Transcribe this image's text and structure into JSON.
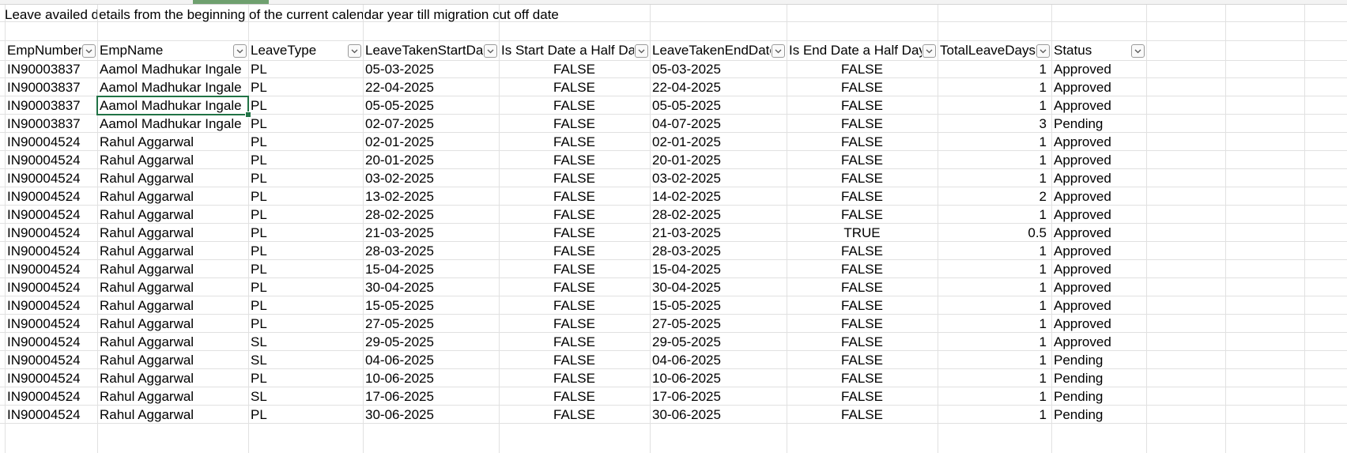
{
  "sheet": {
    "title": "Leave availed details from the beginning of the current calendar year till migration cut off date",
    "filter_icon": "chevron-down-icon",
    "colors": {
      "grid": "#e1e1e1",
      "selection": "#217346"
    },
    "columns": [
      {
        "key": "EmpNumber",
        "label": "EmpNumber"
      },
      {
        "key": "EmpName",
        "label": "EmpName"
      },
      {
        "key": "LeaveType",
        "label": "LeaveType"
      },
      {
        "key": "LeaveTakenStartDate",
        "label": "LeaveTakenStartDat"
      },
      {
        "key": "IsStartHalf",
        "label": "Is Start Date a Half Day"
      },
      {
        "key": "LeaveTakenEndDate",
        "label": "LeaveTakenEndDate"
      },
      {
        "key": "IsEndHalf",
        "label": "Is End Date a Half Day"
      },
      {
        "key": "TotalLeaveDays",
        "label": "TotalLeaveDays"
      },
      {
        "key": "Status",
        "label": "Status"
      }
    ],
    "rows": [
      [
        "IN90003837",
        "Aamol Madhukar Ingale",
        "PL",
        "05-03-2025",
        "FALSE",
        "05-03-2025",
        "FALSE",
        "1",
        "Approved"
      ],
      [
        "IN90003837",
        "Aamol Madhukar Ingale",
        "PL",
        "22-04-2025",
        "FALSE",
        "22-04-2025",
        "FALSE",
        "1",
        "Approved"
      ],
      [
        "IN90003837",
        "Aamol Madhukar Ingale",
        "PL",
        "05-05-2025",
        "FALSE",
        "05-05-2025",
        "FALSE",
        "1",
        "Approved"
      ],
      [
        "IN90003837",
        "Aamol Madhukar Ingale",
        "PL",
        "02-07-2025",
        "FALSE",
        "04-07-2025",
        "FALSE",
        "3",
        "Pending"
      ],
      [
        "IN90004524",
        "Rahul  Aggarwal",
        "PL",
        "02-01-2025",
        "FALSE",
        "02-01-2025",
        "FALSE",
        "1",
        "Approved"
      ],
      [
        "IN90004524",
        "Rahul  Aggarwal",
        "PL",
        "20-01-2025",
        "FALSE",
        "20-01-2025",
        "FALSE",
        "1",
        "Approved"
      ],
      [
        "IN90004524",
        "Rahul  Aggarwal",
        "PL",
        "03-02-2025",
        "FALSE",
        "03-02-2025",
        "FALSE",
        "1",
        "Approved"
      ],
      [
        "IN90004524",
        "Rahul  Aggarwal",
        "PL",
        "13-02-2025",
        "FALSE",
        "14-02-2025",
        "FALSE",
        "2",
        "Approved"
      ],
      [
        "IN90004524",
        "Rahul  Aggarwal",
        "PL",
        "28-02-2025",
        "FALSE",
        "28-02-2025",
        "FALSE",
        "1",
        "Approved"
      ],
      [
        "IN90004524",
        "Rahul  Aggarwal",
        "PL",
        "21-03-2025",
        "FALSE",
        "21-03-2025",
        "TRUE",
        "0.5",
        "Approved"
      ],
      [
        "IN90004524",
        "Rahul  Aggarwal",
        "PL",
        "28-03-2025",
        "FALSE",
        "28-03-2025",
        "FALSE",
        "1",
        "Approved"
      ],
      [
        "IN90004524",
        "Rahul  Aggarwal",
        "PL",
        "15-04-2025",
        "FALSE",
        "15-04-2025",
        "FALSE",
        "1",
        "Approved"
      ],
      [
        "IN90004524",
        "Rahul  Aggarwal",
        "PL",
        "30-04-2025",
        "FALSE",
        "30-04-2025",
        "FALSE",
        "1",
        "Approved"
      ],
      [
        "IN90004524",
        "Rahul  Aggarwal",
        "PL",
        "15-05-2025",
        "FALSE",
        "15-05-2025",
        "FALSE",
        "1",
        "Approved"
      ],
      [
        "IN90004524",
        "Rahul  Aggarwal",
        "PL",
        "27-05-2025",
        "FALSE",
        "27-05-2025",
        "FALSE",
        "1",
        "Approved"
      ],
      [
        "IN90004524",
        "Rahul  Aggarwal",
        "SL",
        "29-05-2025",
        "FALSE",
        "29-05-2025",
        "FALSE",
        "1",
        "Approved"
      ],
      [
        "IN90004524",
        "Rahul  Aggarwal",
        "SL",
        "04-06-2025",
        "FALSE",
        "04-06-2025",
        "FALSE",
        "1",
        "Pending"
      ],
      [
        "IN90004524",
        "Rahul  Aggarwal",
        "PL",
        "10-06-2025",
        "FALSE",
        "10-06-2025",
        "FALSE",
        "1",
        "Pending"
      ],
      [
        "IN90004524",
        "Rahul  Aggarwal",
        "SL",
        "17-06-2025",
        "FALSE",
        "17-06-2025",
        "FALSE",
        "1",
        "Pending"
      ],
      [
        "IN90004524",
        "Rahul  Aggarwal",
        "PL",
        "30-06-2025",
        "FALSE",
        "30-06-2025",
        "FALSE",
        "1",
        "Pending"
      ]
    ]
  }
}
